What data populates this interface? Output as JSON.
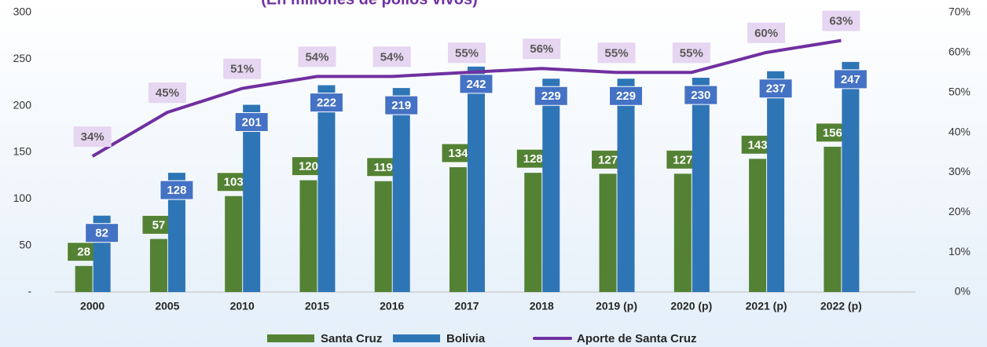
{
  "chart_data": {
    "type": "bar",
    "subtitle": "(En millones de pollos vivos)",
    "categories": [
      "2000",
      "2005",
      "2010",
      "2015",
      "2016",
      "2017",
      "2018",
      "2019 (p)",
      "2020 (p)",
      "2021 (p)",
      "2022 (p)"
    ],
    "series": [
      {
        "name": "Santa Cruz",
        "color": "#548235",
        "values": [
          28,
          57,
          103,
          120,
          119,
          134,
          128,
          127,
          127,
          143,
          156
        ]
      },
      {
        "name": "Bolivia",
        "color": "#2e75b6",
        "values": [
          82,
          128,
          201,
          222,
          219,
          242,
          229,
          229,
          230,
          237,
          247
        ]
      },
      {
        "name": "Aporte de Santa Cruz",
        "color": "#7030a0",
        "type": "line",
        "axis": "y2",
        "values": [
          34,
          45,
          51,
          54,
          54,
          55,
          56,
          55,
          55,
          60,
          63
        ],
        "value_labels": [
          "34%",
          "45%",
          "51%",
          "54%",
          "54%",
          "55%",
          "56%",
          "55%",
          "55%",
          "60%",
          "63%"
        ]
      }
    ],
    "ylim": [
      0,
      300
    ],
    "yticks": [
      {
        "value": 0,
        "label": "-"
      },
      50,
      100,
      150,
      200,
      250,
      300
    ],
    "y2lim": [
      0,
      70
    ],
    "y2ticks": [
      {
        "value": 0,
        "label": "0%"
      },
      {
        "value": 10,
        "label": "10%"
      },
      {
        "value": 20,
        "label": "20%"
      },
      {
        "value": 30,
        "label": "30%"
      },
      {
        "value": 40,
        "label": "40%"
      },
      {
        "value": 50,
        "label": "50%"
      },
      {
        "value": 60,
        "label": "60%"
      },
      {
        "value": 70,
        "label": "70%"
      }
    ],
    "legend": "bottom"
  }
}
